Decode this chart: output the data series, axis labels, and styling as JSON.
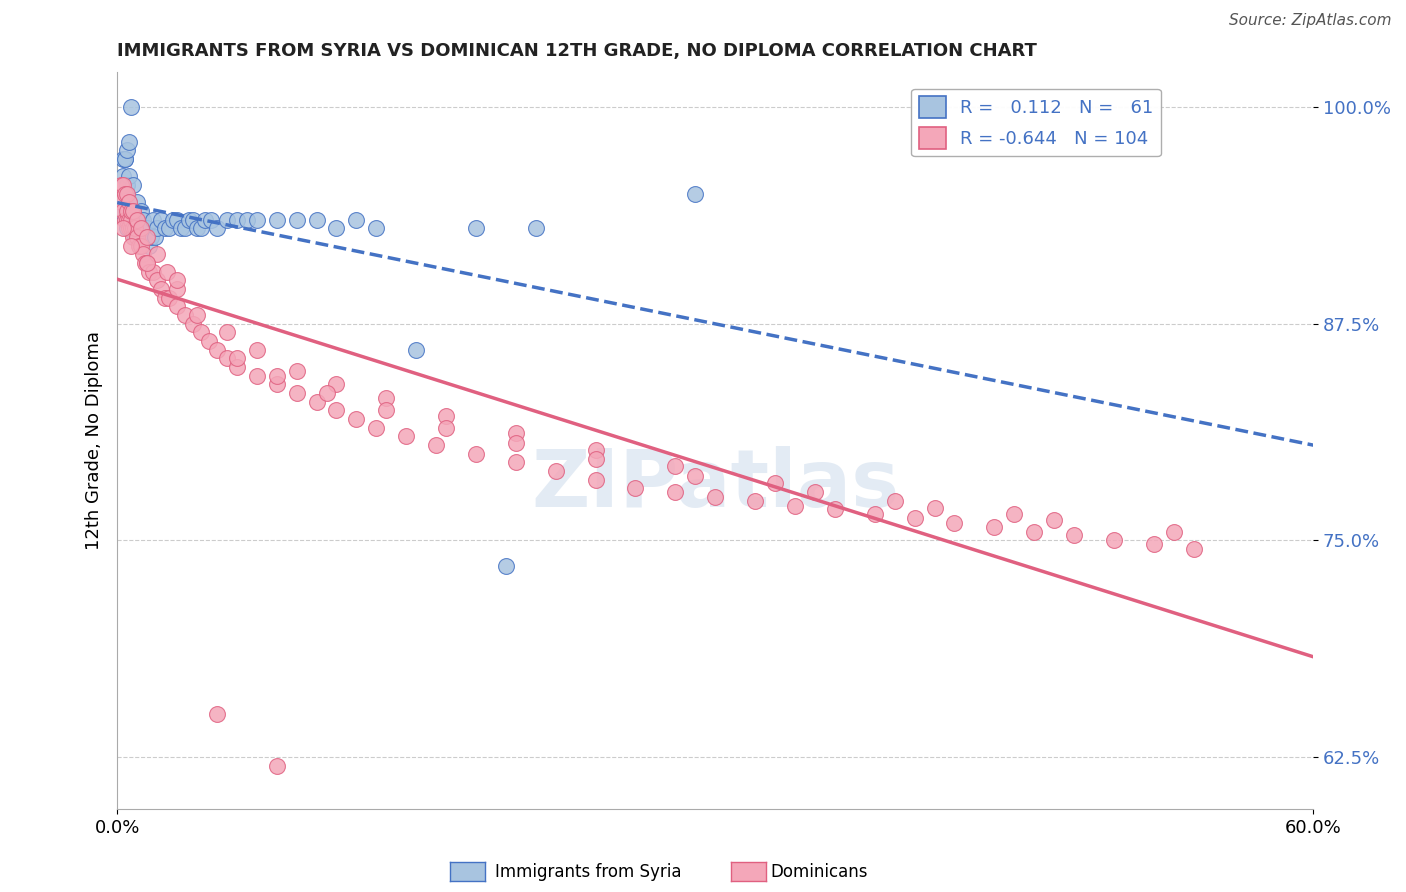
{
  "title": "IMMIGRANTS FROM SYRIA VS DOMINICAN 12TH GRADE, NO DIPLOMA CORRELATION CHART",
  "source": "Source: ZipAtlas.com",
  "ylabel": "12th Grade, No Diploma",
  "xlim": [
    0.0,
    0.6
  ],
  "ylim": [
    0.595,
    1.02
  ],
  "x_ticks": [
    0.0,
    0.6
  ],
  "x_tick_labels": [
    "0.0%",
    "60.0%"
  ],
  "y_ticks": [
    0.625,
    0.75,
    0.875,
    1.0
  ],
  "y_tick_labels": [
    "62.5%",
    "75.0%",
    "87.5%",
    "100.0%"
  ],
  "legend_blue_r": "0.112",
  "legend_blue_n": "61",
  "legend_pink_r": "-0.644",
  "legend_pink_n": "104",
  "blue_color": "#a8c4e0",
  "blue_line_color": "#4472c4",
  "pink_color": "#f4a7b9",
  "pink_line_color": "#e06080",
  "watermark": "ZIPatlas",
  "blue_scatter_x": [
    0.002,
    0.003,
    0.004,
    0.005,
    0.005,
    0.006,
    0.006,
    0.007,
    0.007,
    0.008,
    0.008,
    0.009,
    0.009,
    0.01,
    0.01,
    0.011,
    0.011,
    0.012,
    0.012,
    0.013,
    0.014,
    0.015,
    0.016,
    0.017,
    0.018,
    0.019,
    0.02,
    0.022,
    0.024,
    0.026,
    0.028,
    0.03,
    0.032,
    0.034,
    0.036,
    0.038,
    0.04,
    0.042,
    0.044,
    0.047,
    0.05,
    0.055,
    0.06,
    0.065,
    0.07,
    0.08,
    0.09,
    0.1,
    0.11,
    0.12,
    0.13,
    0.15,
    0.18,
    0.21,
    0.003,
    0.004,
    0.005,
    0.006,
    0.007,
    0.29,
    0.195
  ],
  "blue_scatter_y": [
    0.94,
    0.96,
    0.97,
    0.955,
    0.93,
    0.945,
    0.96,
    0.935,
    0.93,
    0.94,
    0.955,
    0.935,
    0.925,
    0.93,
    0.945,
    0.93,
    0.925,
    0.935,
    0.94,
    0.935,
    0.93,
    0.93,
    0.92,
    0.925,
    0.935,
    0.925,
    0.93,
    0.935,
    0.93,
    0.93,
    0.935,
    0.935,
    0.93,
    0.93,
    0.935,
    0.935,
    0.93,
    0.93,
    0.935,
    0.935,
    0.93,
    0.935,
    0.935,
    0.935,
    0.935,
    0.935,
    0.935,
    0.935,
    0.93,
    0.935,
    0.93,
    0.86,
    0.93,
    0.93,
    0.97,
    0.97,
    0.975,
    0.98,
    1.0,
    0.95,
    0.735
  ],
  "pink_scatter_x": [
    0.002,
    0.003,
    0.004,
    0.005,
    0.005,
    0.006,
    0.006,
    0.007,
    0.007,
    0.008,
    0.008,
    0.009,
    0.01,
    0.011,
    0.012,
    0.013,
    0.014,
    0.015,
    0.016,
    0.018,
    0.02,
    0.022,
    0.024,
    0.026,
    0.03,
    0.034,
    0.038,
    0.042,
    0.046,
    0.05,
    0.055,
    0.06,
    0.07,
    0.08,
    0.09,
    0.1,
    0.11,
    0.12,
    0.13,
    0.145,
    0.16,
    0.18,
    0.2,
    0.22,
    0.24,
    0.26,
    0.28,
    0.3,
    0.32,
    0.34,
    0.36,
    0.38,
    0.4,
    0.42,
    0.44,
    0.46,
    0.48,
    0.5,
    0.52,
    0.54,
    0.002,
    0.003,
    0.004,
    0.005,
    0.006,
    0.007,
    0.008,
    0.01,
    0.012,
    0.015,
    0.02,
    0.025,
    0.03,
    0.04,
    0.055,
    0.07,
    0.09,
    0.11,
    0.135,
    0.165,
    0.2,
    0.24,
    0.28,
    0.33,
    0.39,
    0.45,
    0.06,
    0.08,
    0.105,
    0.135,
    0.165,
    0.2,
    0.24,
    0.29,
    0.35,
    0.41,
    0.47,
    0.53,
    0.003,
    0.007,
    0.015,
    0.03,
    0.05,
    0.08
  ],
  "pink_scatter_y": [
    0.945,
    0.94,
    0.935,
    0.935,
    0.94,
    0.935,
    0.93,
    0.93,
    0.935,
    0.93,
    0.925,
    0.93,
    0.925,
    0.92,
    0.92,
    0.915,
    0.91,
    0.91,
    0.905,
    0.905,
    0.9,
    0.895,
    0.89,
    0.89,
    0.885,
    0.88,
    0.875,
    0.87,
    0.865,
    0.86,
    0.855,
    0.85,
    0.845,
    0.84,
    0.835,
    0.83,
    0.825,
    0.82,
    0.815,
    0.81,
    0.805,
    0.8,
    0.795,
    0.79,
    0.785,
    0.78,
    0.778,
    0.775,
    0.773,
    0.77,
    0.768,
    0.765,
    0.763,
    0.76,
    0.758,
    0.755,
    0.753,
    0.75,
    0.748,
    0.745,
    0.955,
    0.955,
    0.95,
    0.95,
    0.945,
    0.94,
    0.94,
    0.935,
    0.93,
    0.925,
    0.915,
    0.905,
    0.895,
    0.88,
    0.87,
    0.86,
    0.848,
    0.84,
    0.832,
    0.822,
    0.812,
    0.802,
    0.793,
    0.783,
    0.773,
    0.765,
    0.855,
    0.845,
    0.835,
    0.825,
    0.815,
    0.806,
    0.797,
    0.787,
    0.778,
    0.769,
    0.762,
    0.755,
    0.93,
    0.92,
    0.91,
    0.9,
    0.65,
    0.62
  ]
}
